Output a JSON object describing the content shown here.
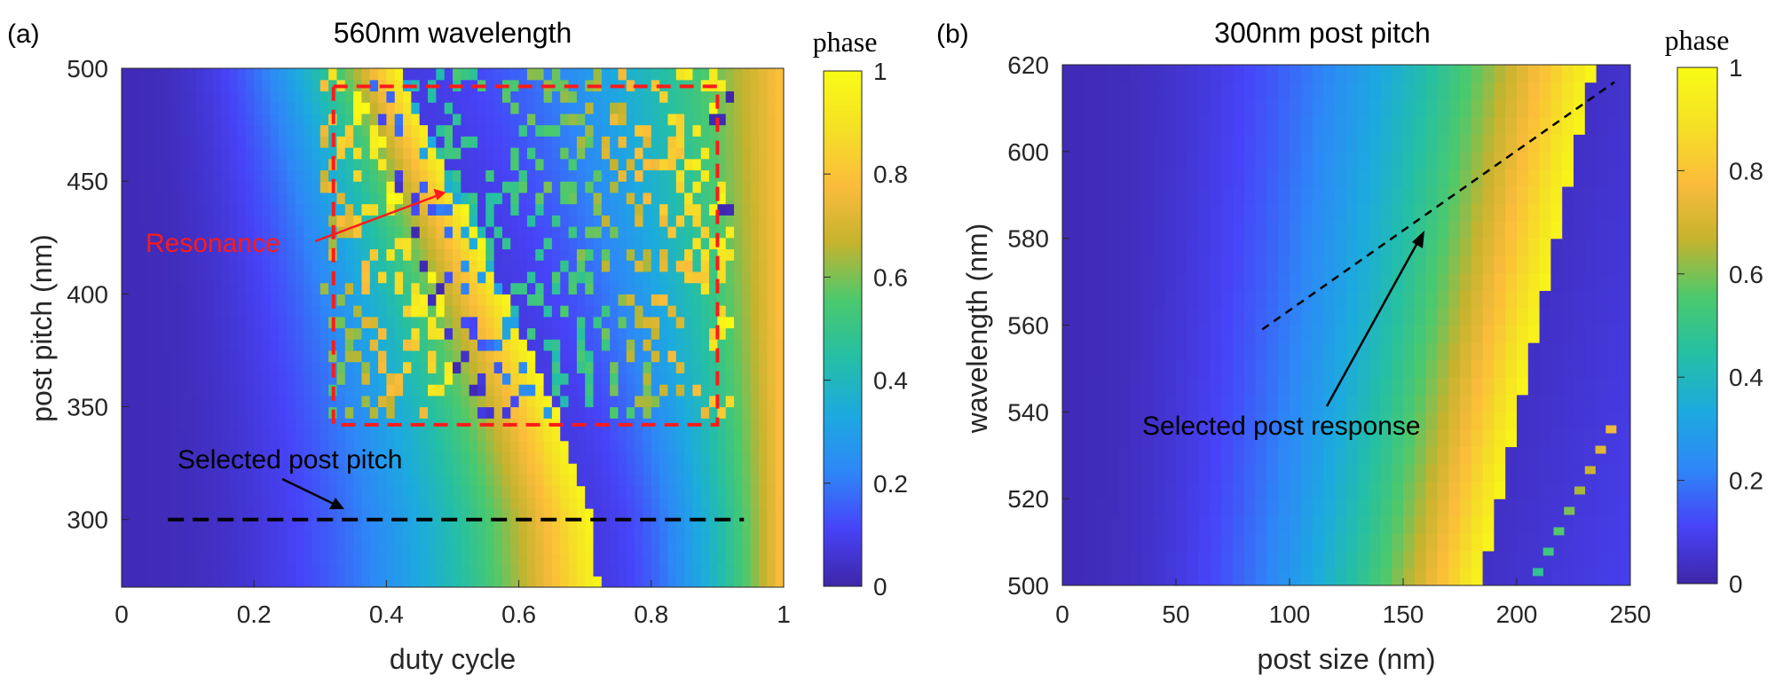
{
  "chart_data": [
    {
      "type": "heatmap",
      "panel_label": "(a)",
      "title": "560nm wavelength",
      "xlabel": "duty cycle",
      "ylabel": "post pitch (nm)",
      "xlim": [
        0,
        1
      ],
      "ylim": [
        270,
        500
      ],
      "xticks": [
        "0",
        "0.2",
        "0.4",
        "0.6",
        "0.8",
        "1"
      ],
      "yticks": [
        "300",
        "350",
        "400",
        "450",
        "500"
      ],
      "colorbar": {
        "title": "phase",
        "range": [
          0,
          1
        ],
        "ticks": [
          "0",
          "0.2",
          "0.4",
          "0.6",
          "0.8",
          "1"
        ]
      },
      "colormap": [
        "#3e26a8",
        "#4743f8",
        "#2e87f7",
        "#1caadf",
        "#24bfa5",
        "#4bc96d",
        "#c5b32e",
        "#fbbc3b",
        "#f5e125",
        "#f9fb15"
      ],
      "phase_edge": [
        {
          "pitch": 270,
          "duty": 0.72
        },
        {
          "pitch": 300,
          "duty": 0.71
        },
        {
          "pitch": 345,
          "duty": 0.66
        },
        {
          "pitch": 400,
          "duty": 0.58
        },
        {
          "pitch": 450,
          "duty": 0.5
        },
        {
          "pitch": 500,
          "duty": 0.42
        }
      ],
      "annotations": {
        "resonance": "Resonance",
        "selected": "Selected post pitch",
        "selected_pitch": 300,
        "selected_duty_range": [
          0.07,
          0.94
        ],
        "resonance_box": {
          "duty": [
            0.32,
            0.9
          ],
          "pitch": [
            342,
            492
          ]
        },
        "resonance_arrow_tip": {
          "duty": 0.49,
          "pitch": 445
        }
      }
    },
    {
      "type": "heatmap",
      "panel_label": "(b)",
      "title": "300nm post pitch",
      "xlabel": "post size (nm)",
      "ylabel": "wavelength (nm)",
      "xlim": [
        0,
        250
      ],
      "ylim": [
        500,
        620
      ],
      "xticks": [
        "0",
        "50",
        "100",
        "150",
        "200",
        "250"
      ],
      "yticks": [
        "500",
        "520",
        "540",
        "560",
        "580",
        "600",
        "620"
      ],
      "colorbar": {
        "title": "phase",
        "range": [
          0,
          1
        ],
        "ticks": [
          "0",
          "0.2",
          "0.4",
          "0.6",
          "0.8",
          "1"
        ]
      },
      "colormap": [
        "#3e26a8",
        "#4743f8",
        "#2e87f7",
        "#1caadf",
        "#24bfa5",
        "#4bc96d",
        "#c5b32e",
        "#fbbc3b",
        "#f5e125",
        "#f9fb15"
      ],
      "phase_edge": [
        {
          "wavelength": 500,
          "size": 184
        },
        {
          "wavelength": 560,
          "size": 210
        },
        {
          "wavelength": 600,
          "size": 226
        },
        {
          "wavelength": 620,
          "size": 234
        }
      ],
      "annotations": {
        "selected": "Selected post response",
        "dashed_line": [
          {
            "size": 88,
            "wavelength": 559
          },
          {
            "size": 243,
            "wavelength": 616
          }
        ],
        "arrow_tip": {
          "size": 159,
          "wavelength": 585
        }
      }
    }
  ]
}
